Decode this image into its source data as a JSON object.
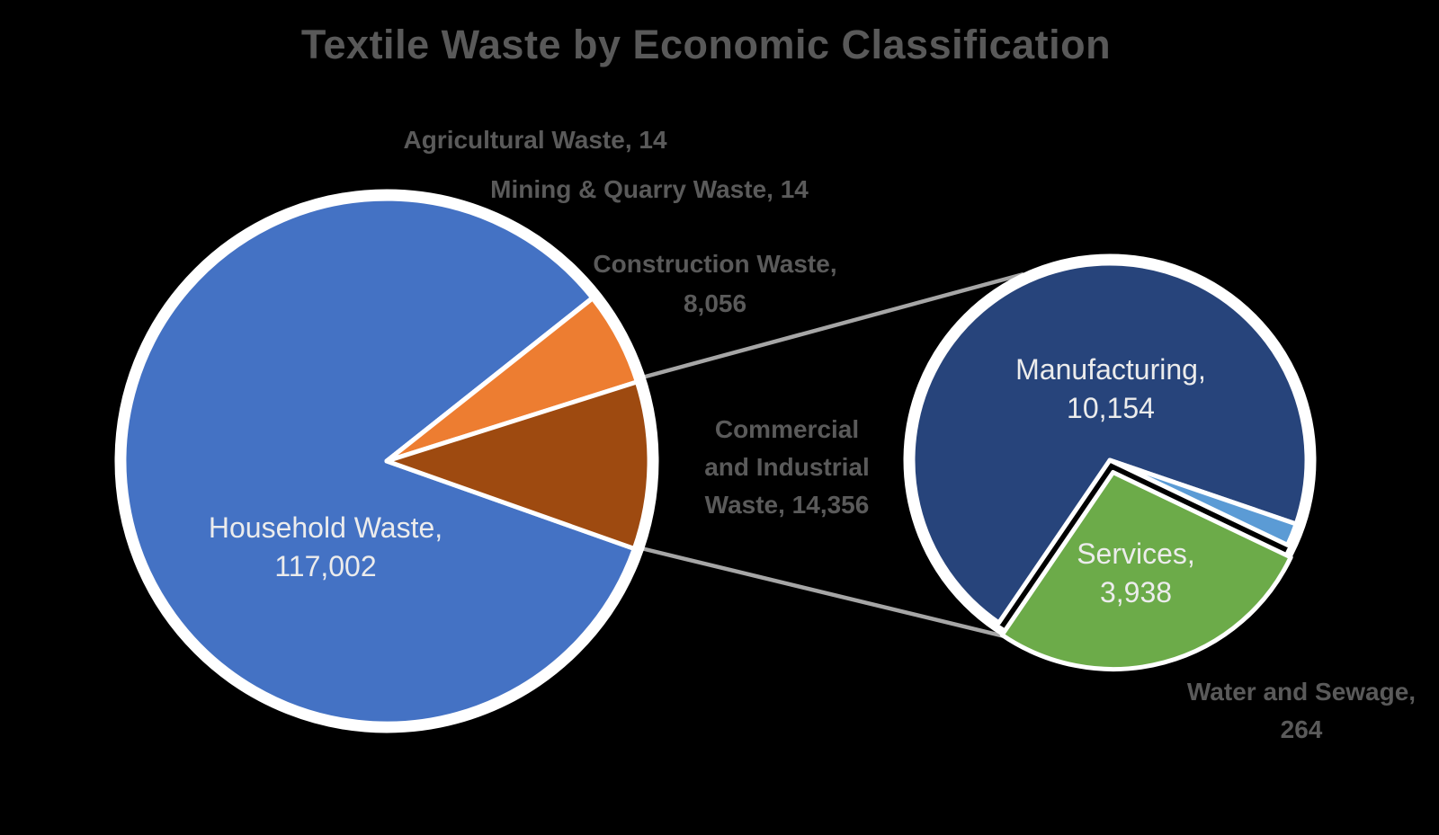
{
  "chart_data": {
    "type": "pie",
    "variant": "pie-of-pie",
    "title": "Textile Waste by Economic Classification",
    "legend": "none",
    "main_pie": {
      "slices": [
        {
          "label": "Household Waste",
          "value": 117002,
          "color": "#4472C4"
        },
        {
          "label": "Agricultural Waste",
          "value": 14,
          "color": "#4472C4"
        },
        {
          "label": "Mining & Quarry Waste",
          "value": 14,
          "color": "#4472C4"
        },
        {
          "label": "Construction Waste",
          "value": 8056,
          "color": "#ED7D31"
        },
        {
          "label": "Commercial and Industrial Waste",
          "value": 14356,
          "color": "#9E4A10"
        }
      ]
    },
    "secondary_pie": {
      "group_label": "Commercial and Industrial Waste",
      "group_total": 14356,
      "slices": [
        {
          "label": "Manufacturing",
          "value": 10154,
          "color": "#27447B"
        },
        {
          "label": "Water and Sewage",
          "value": 264,
          "color": "#5B9BD5"
        },
        {
          "label": "Services",
          "value": 3938,
          "color": "#6CAB49"
        }
      ]
    }
  },
  "labels": {
    "agricultural": {
      "line1": "Agricultural Waste, 14"
    },
    "mining": {
      "line1": "Mining & Quarry Waste, 14"
    },
    "construction": {
      "line1": "Construction Waste,",
      "line2": "8,056"
    },
    "commercial": {
      "line1": "Commercial",
      "line2": "and Industrial",
      "line3": "Waste, 14,356"
    },
    "household": {
      "line1": "Household Waste,",
      "line2": "117,002"
    },
    "manufacturing": {
      "line1": "Manufacturing,",
      "line2": "10,154"
    },
    "services": {
      "line1": "Services,",
      "line2": "3,938"
    },
    "water_sewage": {
      "line1": "Water and Sewage,",
      "line2": "264"
    }
  },
  "colors": {
    "background_black": "#000000",
    "title_gray": "#595959",
    "label_gray": "#5A5A5A",
    "label_white": "#ECECEC",
    "connector_gray": "#A6A6A6",
    "slice_border_white": "#FFFFFF"
  }
}
